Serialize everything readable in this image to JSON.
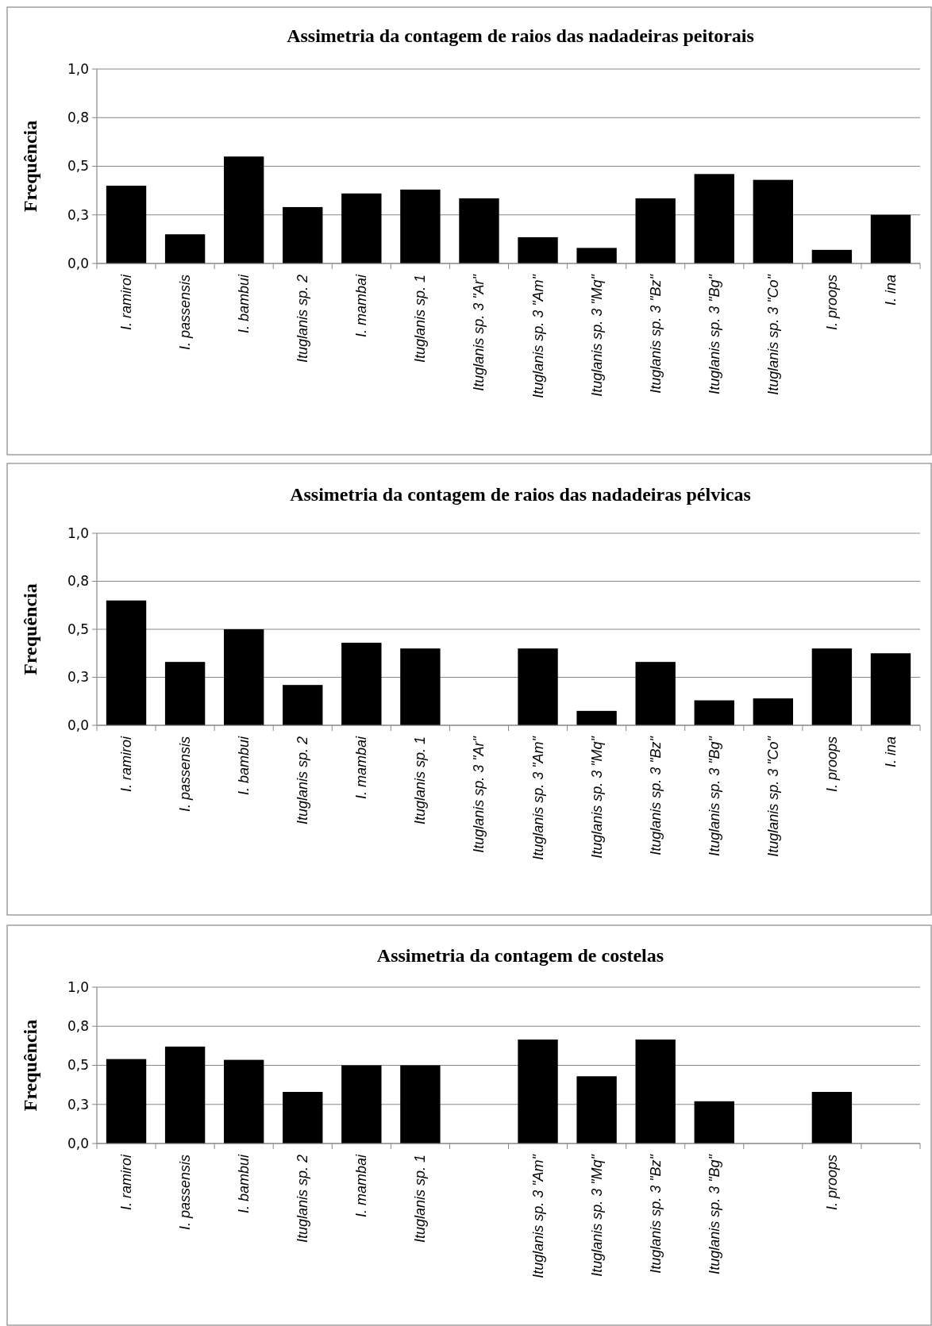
{
  "chart_data": [
    {
      "type": "bar",
      "title": "Assimetria da contagem de raios das nadadeiras peitorais",
      "ylabel": "Frequência",
      "categories": [
        "I. ramiroi",
        "I. passensis",
        "I. bambui",
        "Ituglanis sp. 2",
        "I. mambai",
        "Ituglanis sp. 1",
        "Ituglanis sp. 3 \"Ar\"",
        "Ituglanis sp. 3 \"Am\"",
        "Ituglanis sp. 3 \"Mq\"",
        "Ituglanis sp. 3 \"Bz\"",
        "Ituglanis sp. 3 \"Bg\"",
        "Ituglanis sp. 3 \"Co\"",
        "I. proops",
        "I. ina"
      ],
      "values": [
        0.4,
        0.15,
        0.55,
        0.29,
        0.36,
        0.38,
        0.335,
        0.135,
        0.08,
        0.335,
        0.46,
        0.43,
        0.07,
        0.25
      ],
      "color": "#000000",
      "ylim": [
        0,
        1
      ],
      "yticks": [
        {
          "value": 0,
          "label": "0,0"
        },
        {
          "value": 0.25,
          "label": "0,3"
        },
        {
          "value": 0.5,
          "label": "0,5"
        },
        {
          "value": 0.75,
          "label": "0,8"
        },
        {
          "value": 1,
          "label": "1,0"
        }
      ],
      "grid": "y"
    },
    {
      "type": "bar",
      "title": "Assimetria da contagem de raios das nadadeiras pélvicas",
      "ylabel": "Frequência",
      "categories": [
        "I. ramiroi",
        "I. passensis",
        "I. bambui",
        "Ituglanis sp. 2",
        "I. mambai",
        "Ituglanis sp. 1",
        "Ituglanis sp. 3 \"Ar\"",
        "Ituglanis sp. 3 \"Am\"",
        "Ituglanis sp. 3 \"Mq\"",
        "Ituglanis sp. 3 \"Bz\"",
        "Ituglanis sp. 3 \"Bg\"",
        "Ituglanis sp. 3 \"Co\"",
        "I. proops",
        "I. ina"
      ],
      "values": [
        0.65,
        0.33,
        0.5,
        0.21,
        0.43,
        0.4,
        0,
        0.4,
        0.075,
        0.33,
        0.13,
        0.14,
        0.4,
        0.375
      ],
      "color": "#000000",
      "ylim": [
        0,
        1
      ],
      "yticks": [
        {
          "value": 0,
          "label": "0,0"
        },
        {
          "value": 0.25,
          "label": "0,3"
        },
        {
          "value": 0.5,
          "label": "0,5"
        },
        {
          "value": 0.75,
          "label": "0,8"
        },
        {
          "value": 1,
          "label": "1,0"
        }
      ],
      "grid": "y"
    },
    {
      "type": "bar",
      "title": "Assimetria da contagem de costelas",
      "ylabel": "Frequência",
      "categories": [
        "I. ramiroi",
        "I. passensis",
        "I. bambui",
        "Ituglanis sp. 2",
        "I. mambai",
        "Ituglanis sp. 1",
        null,
        "Ituglanis sp. 3 \"Am\"",
        "Ituglanis sp. 3 \"Mq\"",
        "Ituglanis sp. 3 \"Bz\"",
        "Ituglanis sp. 3 \"Bg\"",
        null,
        "I. proops",
        null
      ],
      "values": [
        0.54,
        0.62,
        0.535,
        0.33,
        0.5,
        0.5,
        null,
        0.665,
        0.43,
        0.665,
        0.27,
        null,
        0.33,
        null
      ],
      "color": "#000000",
      "ylim": [
        0,
        1
      ],
      "yticks": [
        {
          "value": 0,
          "label": "0,0"
        },
        {
          "value": 0.25,
          "label": "0,3"
        },
        {
          "value": 0.5,
          "label": "0,5"
        },
        {
          "value": 0.75,
          "label": "0,8"
        },
        {
          "value": 1,
          "label": "1,0"
        }
      ],
      "grid": "y"
    }
  ]
}
